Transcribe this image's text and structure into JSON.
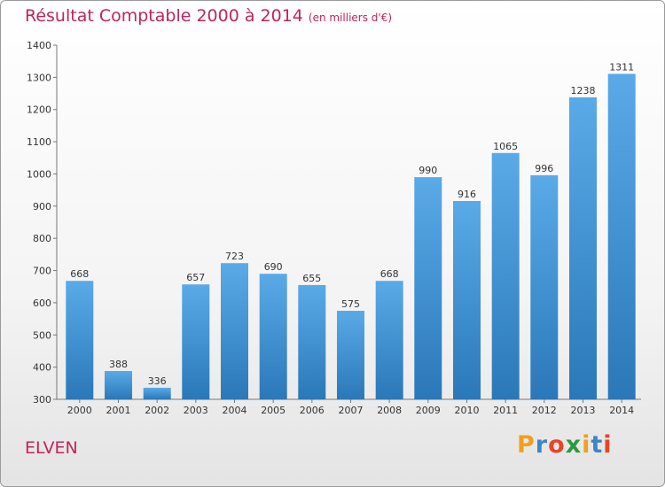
{
  "title": "Résultat Comptable 2000 à 2014",
  "subtitle": "(en milliers d'€)",
  "location": "ELVEN",
  "logo": {
    "letters": [
      "P",
      "r",
      "o",
      "x",
      "i",
      "t",
      "i"
    ],
    "colors": [
      "#f0a020",
      "#3a86c8",
      "#e8442a",
      "#2a9a3a",
      "#f0a020",
      "#3a86c8",
      "#e8442a"
    ]
  },
  "chart_data": {
    "type": "bar",
    "title": "Résultat Comptable 2000 à 2014",
    "subtitle": "(en milliers d'€)",
    "categories": [
      "2000",
      "2001",
      "2002",
      "2003",
      "2004",
      "2005",
      "2006",
      "2007",
      "2008",
      "2009",
      "2010",
      "2011",
      "2012",
      "2013",
      "2014"
    ],
    "values": [
      668,
      388,
      336,
      657,
      723,
      690,
      655,
      575,
      668,
      990,
      916,
      1065,
      996,
      1238,
      1311
    ],
    "value_labels": [
      "668",
      "388",
      "336",
      "657",
      "723",
      "690",
      "655",
      "575",
      "668",
      "990",
      "916",
      "1065",
      "996",
      "1238",
      "1311"
    ],
    "ylim": [
      300,
      1400
    ],
    "yticks": [
      "300",
      "400",
      "500",
      "600",
      "700",
      "800",
      "900",
      "1000",
      "1100",
      "1200",
      "1300",
      "1400"
    ],
    "xlabel": "",
    "ylabel": "",
    "grid": false,
    "bar_color_top": "#5aaae8",
    "bar_color_bottom": "#2a78b8"
  }
}
